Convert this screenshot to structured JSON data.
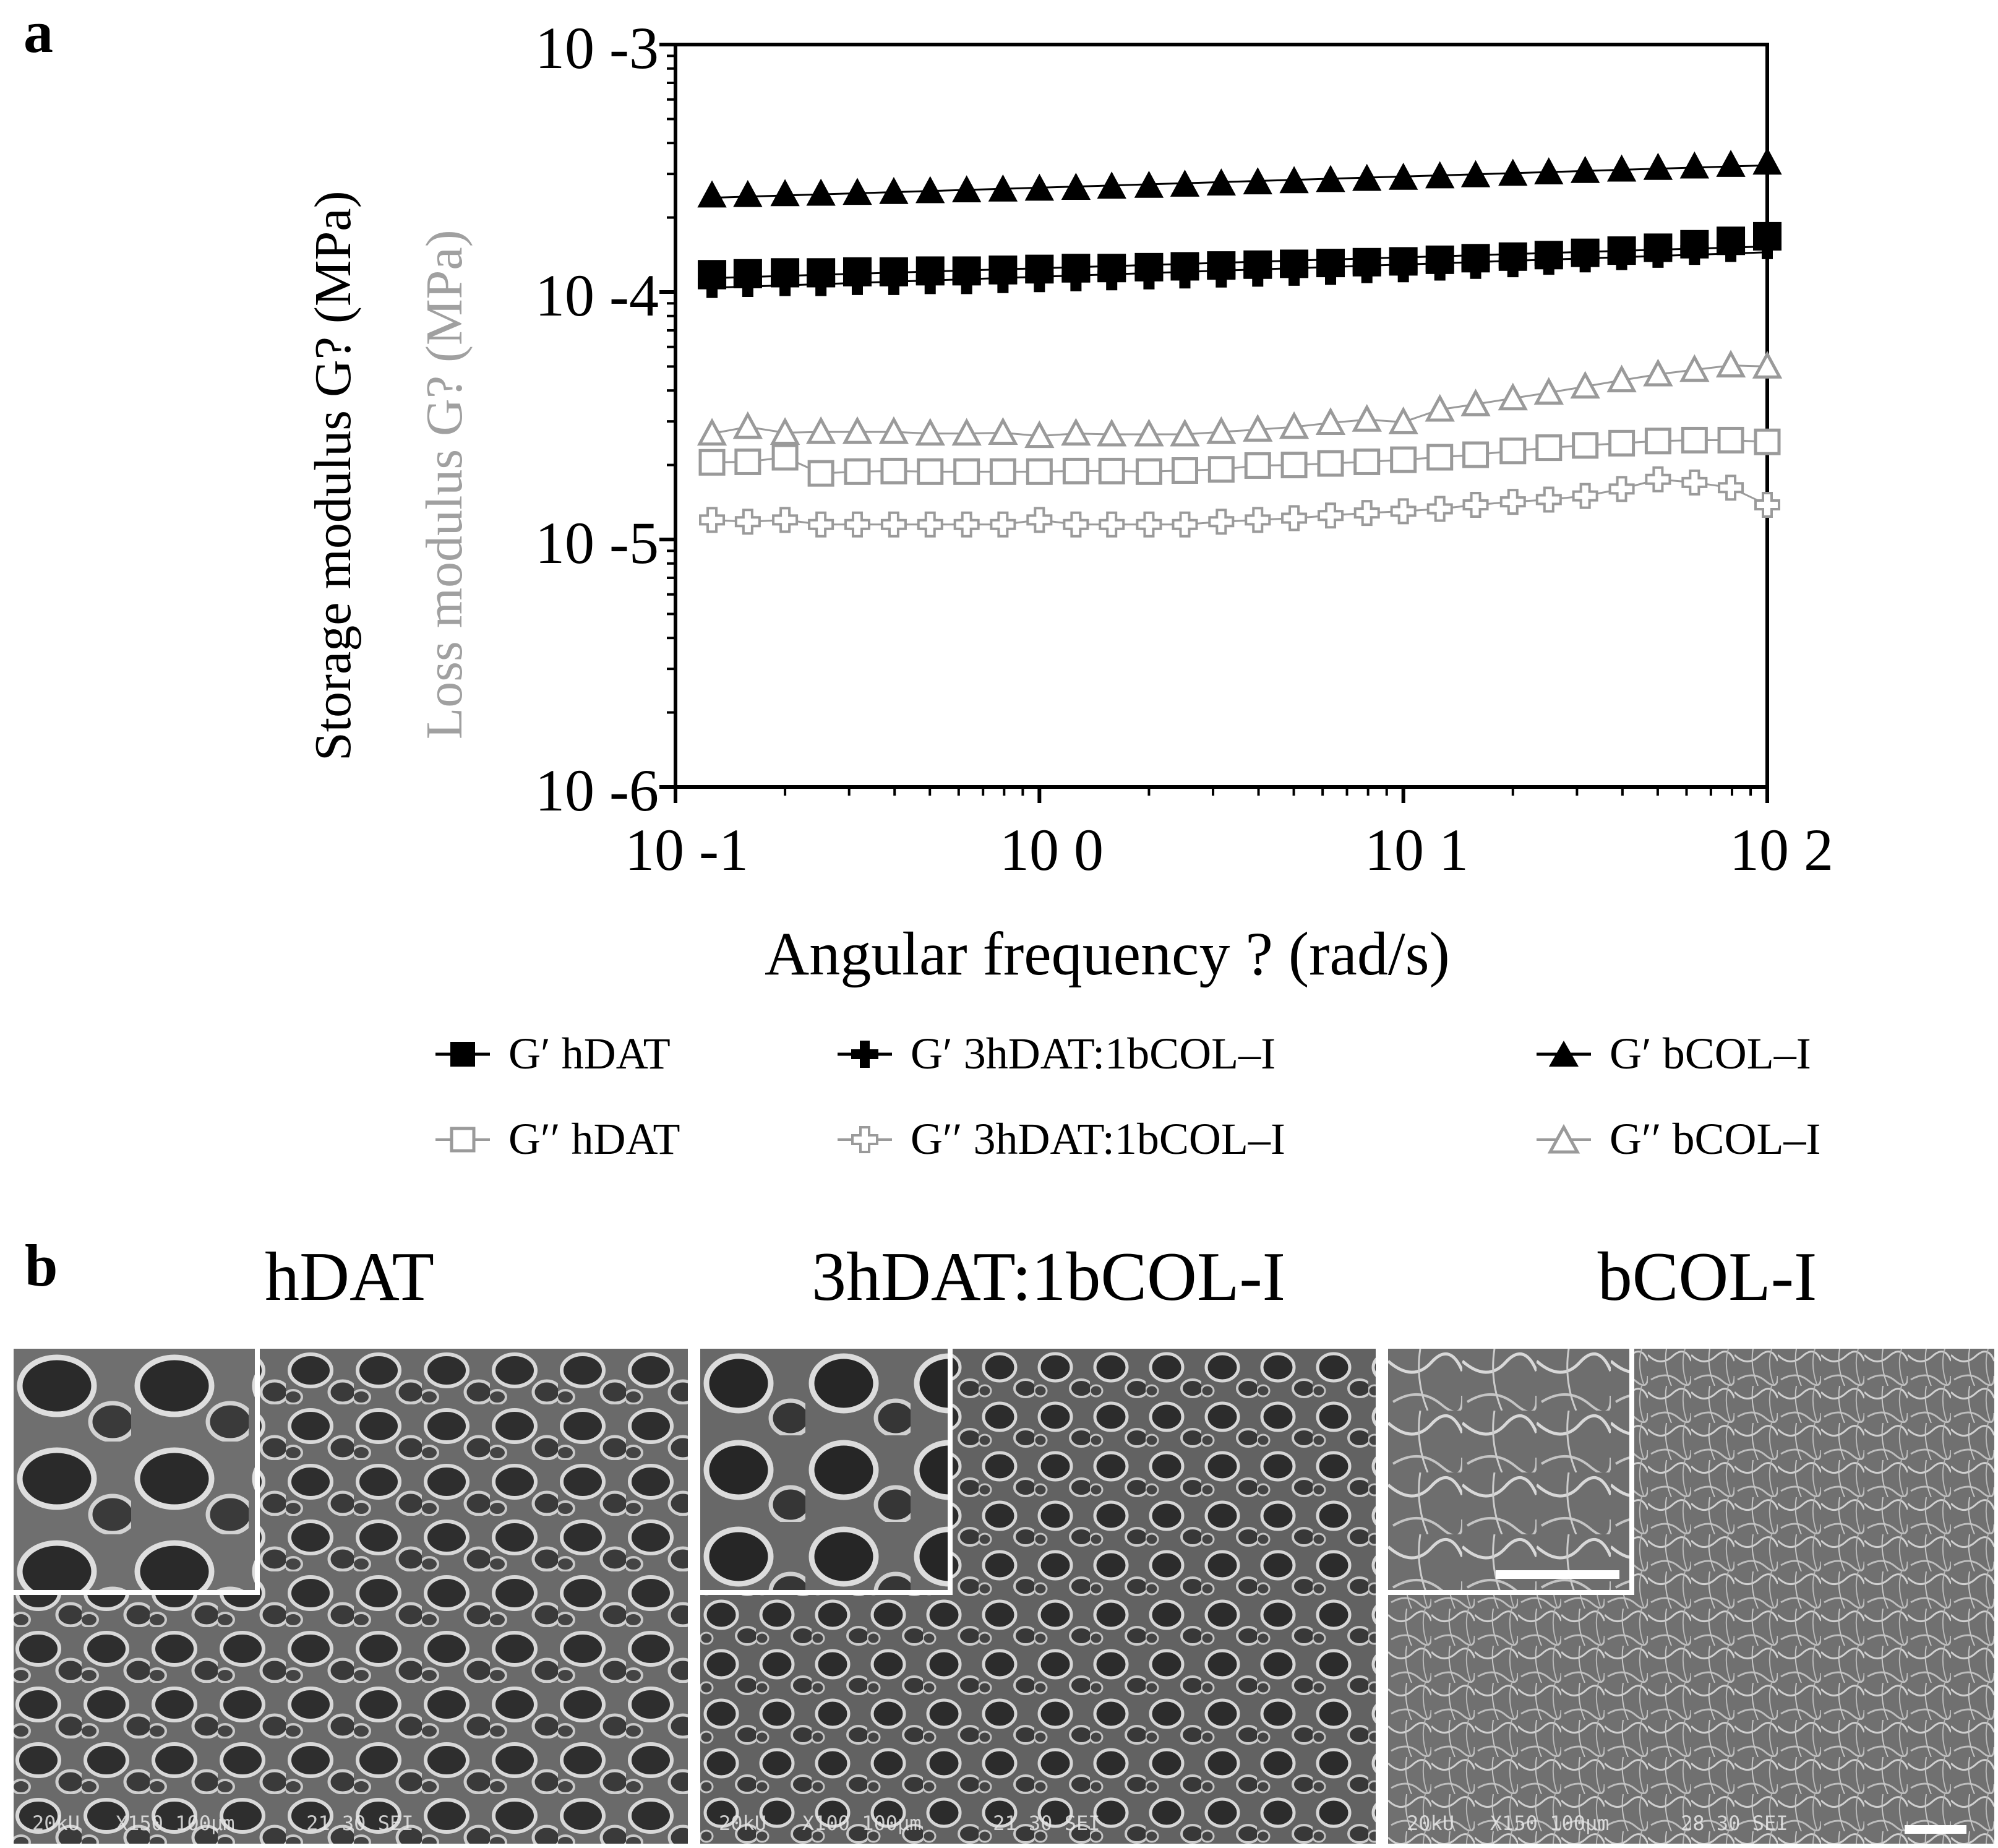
{
  "panel_a_label": "a",
  "panel_b_label": "b",
  "chart_data": {
    "type": "scatter",
    "xscale": "log",
    "yscale": "log",
    "xlim": [
      0.1,
      100
    ],
    "ylim": [
      1e-06,
      0.001
    ],
    "ylabel_storage": "Storage modulus  G? (MPa)",
    "ylabel_loss": "Loss modulus G? (MPa)",
    "xlabel": "Angular frequency  ?   (rad/s)",
    "y_ticks": [
      {
        "value": 0.001,
        "label": "10 -3"
      },
      {
        "value": 0.0001,
        "label": "10 -4"
      },
      {
        "value": 1e-05,
        "label": "10 -5"
      },
      {
        "value": 1e-06,
        "label": "10 -6"
      }
    ],
    "x_ticks": [
      {
        "value": 0.1,
        "label": "10 -1"
      },
      {
        "value": 1,
        "label": "10 0"
      },
      {
        "value": 10,
        "label": "10 1"
      },
      {
        "value": 100,
        "label": "10 2"
      }
    ],
    "x": [
      0.126,
      0.158,
      0.2,
      0.251,
      0.316,
      0.398,
      0.501,
      0.631,
      0.794,
      1.0,
      1.26,
      1.58,
      2.0,
      2.51,
      3.16,
      3.98,
      5.01,
      6.31,
      7.94,
      10.0,
      12.6,
      15.8,
      20.0,
      25.1,
      31.6,
      39.8,
      50.1,
      63.1,
      79.4,
      100.0
    ],
    "series": [
      {
        "name": "G′ hDAT",
        "key": "gp_hdat",
        "marker": "square",
        "filled": true,
        "color": "#000000",
        "values": [
          0.000118,
          0.000119,
          0.00012,
          0.00012,
          0.000121,
          0.000121,
          0.000122,
          0.000122,
          0.000123,
          0.000124,
          0.000125,
          0.000125,
          0.000126,
          0.000127,
          0.000128,
          0.000129,
          0.00013,
          0.000131,
          0.000132,
          0.000133,
          0.000135,
          0.000137,
          0.000139,
          0.000141,
          0.000144,
          0.000147,
          0.000151,
          0.000156,
          0.000161,
          0.000168
        ]
      },
      {
        "name": "G′ 3hDAT:1bCOL–I",
        "key": "gp_mix",
        "marker": "plus",
        "filled": true,
        "color": "#000000",
        "values": [
          0.000108,
          0.000109,
          0.00011,
          0.00011,
          0.000111,
          0.000111,
          0.000112,
          0.000112,
          0.000113,
          0.000114,
          0.000115,
          0.000116,
          0.000117,
          0.000118,
          0.000119,
          0.00012,
          0.000121,
          0.000122,
          0.000124,
          0.000125,
          0.000127,
          0.000129,
          0.000131,
          0.000134,
          0.000137,
          0.00014,
          0.000143,
          0.000147,
          0.000151,
          0.000155
        ]
      },
      {
        "name": "G′ bCOL–I",
        "key": "gp_col",
        "marker": "triangle",
        "filled": true,
        "color": "#000000",
        "values": [
          0.000246,
          0.000247,
          0.000249,
          0.00025,
          0.000252,
          0.000254,
          0.000256,
          0.000258,
          0.00026,
          0.000262,
          0.000264,
          0.000267,
          0.000269,
          0.000272,
          0.000275,
          0.000278,
          0.000281,
          0.000284,
          0.000287,
          0.00029,
          0.000294,
          0.000297,
          0.000301,
          0.000305,
          0.000309,
          0.000313,
          0.000318,
          0.000322,
          0.000327,
          0.000334
        ]
      },
      {
        "name": "G′′ hDAT",
        "key": "gpp_hdat",
        "marker": "square",
        "filled": false,
        "color": "#9a9a9a",
        "values": [
          2.05e-05,
          2.06e-05,
          2.15e-05,
          1.85e-05,
          1.88e-05,
          1.89e-05,
          1.88e-05,
          1.88e-05,
          1.88e-05,
          1.88e-05,
          1.89e-05,
          1.89e-05,
          1.88e-05,
          1.9e-05,
          1.92e-05,
          1.99e-05,
          2e-05,
          2.03e-05,
          2.06e-05,
          2.1e-05,
          2.15e-05,
          2.2e-05,
          2.28e-05,
          2.35e-05,
          2.4e-05,
          2.45e-05,
          2.5e-05,
          2.52e-05,
          2.52e-05,
          2.48e-05
        ]
      },
      {
        "name": "G′′ 3hDAT:1bCOL–I",
        "key": "gpp_mix",
        "marker": "plus",
        "filled": false,
        "color": "#9a9a9a",
        "values": [
          1.2e-05,
          1.18e-05,
          1.2e-05,
          1.15e-05,
          1.15e-05,
          1.15e-05,
          1.15e-05,
          1.15e-05,
          1.15e-05,
          1.2e-05,
          1.15e-05,
          1.15e-05,
          1.15e-05,
          1.15e-05,
          1.18e-05,
          1.2e-05,
          1.22e-05,
          1.25e-05,
          1.28e-05,
          1.3e-05,
          1.33e-05,
          1.38e-05,
          1.42e-05,
          1.45e-05,
          1.5e-05,
          1.6e-05,
          1.75e-05,
          1.7e-05,
          1.62e-05,
          1.38e-05
        ]
      },
      {
        "name": "G′′ bCOL–I",
        "key": "gpp_col",
        "marker": "triangle",
        "filled": false,
        "color": "#9a9a9a",
        "values": [
          2.68e-05,
          2.85e-05,
          2.7e-05,
          2.72e-05,
          2.72e-05,
          2.72e-05,
          2.68e-05,
          2.68e-05,
          2.7e-05,
          2.62e-05,
          2.68e-05,
          2.66e-05,
          2.66e-05,
          2.66e-05,
          2.72e-05,
          2.78e-05,
          2.85e-05,
          2.96e-05,
          3.05e-05,
          2.98e-05,
          3.35e-05,
          3.52e-05,
          3.72e-05,
          3.92e-05,
          4.15e-05,
          4.4e-05,
          4.65e-05,
          4.85e-05,
          5.05e-05,
          5e-05
        ]
      }
    ]
  },
  "legend": [
    {
      "key": "gp_hdat",
      "label": "G′  hDAT"
    },
    {
      "key": "gp_mix",
      "label": "G′  3hDAT:1bCOL–I"
    },
    {
      "key": "gp_col",
      "label": "G′  bCOL–I"
    },
    {
      "key": "gpp_hdat",
      "label": "G′′ hDAT"
    },
    {
      "key": "gpp_mix",
      "label": "G′′ 3hDAT:1bCOL–I"
    },
    {
      "key": "gpp_col",
      "label": "G′′  bCOL–I"
    }
  ],
  "micrographs": [
    {
      "title": "hDAT",
      "caption": "20kU   X150 100μm      21 30 SEI"
    },
    {
      "title": "3hDAT:1bCOL-I",
      "caption": "20kU   X100 100μm      21 30 SEI"
    },
    {
      "title": "bCOL-I",
      "caption": "20kU   X150 100μm      28 30 SEI"
    }
  ]
}
